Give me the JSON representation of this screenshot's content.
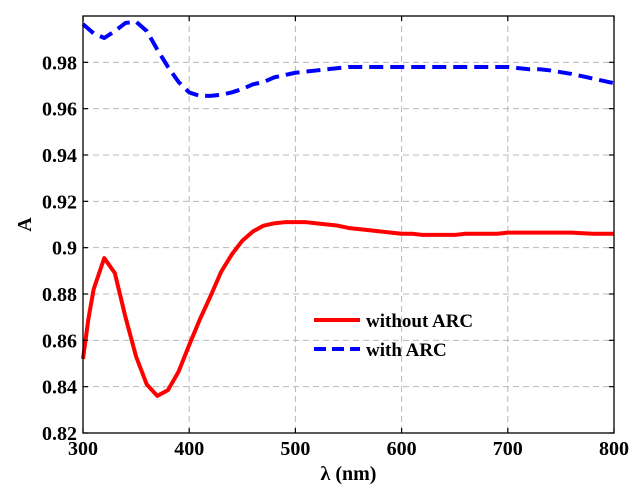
{
  "chart_data": {
    "type": "line",
    "title": "",
    "xlabel": "λ (nm)",
    "ylabel": "A",
    "xlim": [
      300,
      800
    ],
    "ylim": [
      0.82,
      1.0
    ],
    "xticks": [
      300,
      400,
      500,
      600,
      700,
      800
    ],
    "yticks": [
      0.82,
      0.84,
      0.86,
      0.88,
      0.9,
      0.92,
      0.94,
      0.96,
      0.98
    ],
    "xtick_labels": [
      "300",
      "400",
      "500",
      "600",
      "700",
      "800"
    ],
    "ytick_labels": [
      "0.82",
      "0.84",
      "0.86",
      "0.88",
      "0.9",
      "0.92",
      "0.94",
      "0.96",
      "0.98"
    ],
    "grid": true,
    "legend_position": "center-right",
    "series": [
      {
        "name": "without ARC",
        "color": "#ff0000",
        "style": "solid",
        "x": [
          300,
          305,
          310,
          320,
          330,
          340,
          350,
          360,
          370,
          380,
          390,
          400,
          410,
          420,
          430,
          440,
          450,
          460,
          470,
          480,
          490,
          500,
          510,
          520,
          530,
          540,
          550,
          560,
          570,
          580,
          590,
          600,
          610,
          620,
          630,
          640,
          650,
          660,
          670,
          680,
          690,
          700,
          720,
          740,
          760,
          780,
          800
        ],
        "y": [
          0.852,
          0.869,
          0.882,
          0.8955,
          0.889,
          0.87,
          0.853,
          0.841,
          0.836,
          0.8385,
          0.8465,
          0.858,
          0.869,
          0.879,
          0.8895,
          0.897,
          0.903,
          0.907,
          0.9095,
          0.9105,
          0.911,
          0.911,
          0.911,
          0.9105,
          0.91,
          0.9095,
          0.9085,
          0.908,
          0.9075,
          0.907,
          0.9065,
          0.906,
          0.906,
          0.9055,
          0.9055,
          0.9055,
          0.9055,
          0.906,
          0.906,
          0.906,
          0.906,
          0.9065,
          0.9065,
          0.9065,
          0.9065,
          0.906,
          0.906
        ]
      },
      {
        "name": "with ARC",
        "color": "#0000ff",
        "style": "dashed",
        "x": [
          300,
          310,
          320,
          330,
          340,
          350,
          360,
          370,
          380,
          390,
          400,
          410,
          420,
          430,
          440,
          450,
          460,
          470,
          480,
          490,
          500,
          510,
          520,
          530,
          540,
          550,
          560,
          580,
          600,
          620,
          640,
          660,
          680,
          700,
          710,
          720,
          730,
          740,
          760,
          780,
          800
        ],
        "y": [
          0.9965,
          0.9925,
          0.9905,
          0.9935,
          0.997,
          0.9975,
          0.9935,
          0.9855,
          0.978,
          0.9715,
          0.967,
          0.9655,
          0.9655,
          0.966,
          0.967,
          0.9685,
          0.9705,
          0.9715,
          0.9735,
          0.9745,
          0.9755,
          0.976,
          0.9765,
          0.977,
          0.9775,
          0.978,
          0.978,
          0.978,
          0.978,
          0.978,
          0.978,
          0.978,
          0.978,
          0.978,
          0.9775,
          0.977,
          0.977,
          0.9765,
          0.975,
          0.973,
          0.971
        ]
      }
    ]
  }
}
